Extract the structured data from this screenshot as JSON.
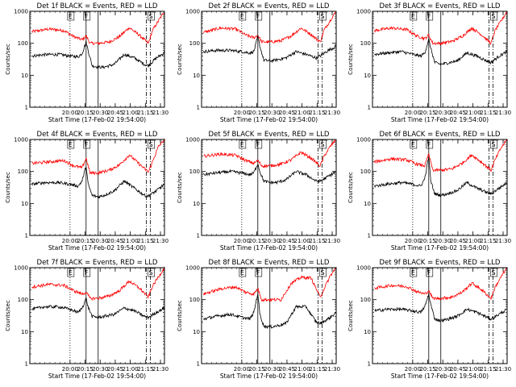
{
  "chart_data": {
    "type": "line",
    "layout": "3x3 grid of panels",
    "common": {
      "ylabel": "Counts/sec",
      "xlabel": "Start Time (17-Feb-02 19:54:00)",
      "yscale": "log",
      "ylim": [
        1,
        1000
      ],
      "ytick_labels": [
        "1",
        "10",
        "100",
        "1000"
      ],
      "xlim_minutes": [
        -34,
        100
      ],
      "xtick_labels": [
        "20:00",
        "20:15",
        "20:30",
        "20:45",
        "21:00",
        "21:15",
        "21:30"
      ],
      "xtick_minutes": [
        6,
        21,
        36,
        51,
        66,
        81,
        96
      ],
      "series_colors": {
        "events": "#000000",
        "lld": "#ff0000"
      },
      "markers": [
        {
          "label": "E",
          "minute": 6,
          "style": "dotted"
        },
        {
          "label": "F",
          "minute": 22,
          "style": "solid"
        },
        {
          "label": "",
          "minute": 34,
          "style": "solid"
        },
        {
          "label": "",
          "minute": 82,
          "style": "dash-dot"
        },
        {
          "label": "S",
          "minute": 86,
          "style": "dash-dot"
        }
      ]
    },
    "panels": [
      {
        "title": "Det 1f BLACK = Events, RED = LLD",
        "events": {
          "minutes": [
            -32,
            -20,
            -5,
            6,
            14,
            18,
            22,
            24,
            28,
            34,
            40,
            50,
            60,
            70,
            80,
            84,
            92,
            100
          ],
          "values": [
            40,
            44,
            45,
            40,
            38,
            48,
            110,
            60,
            20,
            18,
            18,
            22,
            45,
            35,
            22,
            20,
            35,
            50
          ]
        },
        "lld": {
          "minutes": [
            -32,
            -15,
            0,
            10,
            18,
            22,
            26,
            34,
            45,
            55,
            65,
            75,
            84,
            88,
            94,
            100
          ],
          "values": [
            230,
            280,
            250,
            160,
            130,
            170,
            100,
            100,
            110,
            160,
            310,
            180,
            100,
            250,
            500,
            1000
          ]
        }
      },
      {
        "title": "Det 2f BLACK = Events, RED = LLD",
        "events": {
          "minutes": [
            -32,
            -20,
            -5,
            6,
            14,
            18,
            22,
            24,
            28,
            34,
            40,
            50,
            60,
            70,
            80,
            84,
            92,
            100
          ],
          "values": [
            55,
            60,
            60,
            55,
            50,
            55,
            160,
            80,
            30,
            28,
            30,
            35,
            55,
            45,
            35,
            40,
            60,
            80
          ]
        },
        "lld": {
          "minutes": [
            -32,
            -15,
            0,
            10,
            18,
            22,
            26,
            34,
            45,
            55,
            65,
            75,
            84,
            88,
            94,
            100
          ],
          "values": [
            220,
            300,
            280,
            180,
            150,
            180,
            110,
            110,
            120,
            170,
            300,
            190,
            110,
            260,
            520,
            1000
          ]
        }
      },
      {
        "title": "Det 3f BLACK = Events, RED = LLD",
        "events": {
          "minutes": [
            -32,
            -20,
            -5,
            6,
            14,
            18,
            22,
            24,
            28,
            34,
            40,
            50,
            60,
            70,
            80,
            84,
            92,
            100
          ],
          "values": [
            45,
            50,
            55,
            45,
            40,
            50,
            130,
            70,
            25,
            22,
            24,
            28,
            50,
            40,
            28,
            25,
            40,
            55
          ]
        },
        "lld": {
          "minutes": [
            -32,
            -15,
            0,
            10,
            18,
            22,
            26,
            34,
            45,
            55,
            65,
            75,
            84,
            88,
            94,
            100
          ],
          "values": [
            250,
            300,
            270,
            170,
            140,
            180,
            100,
            100,
            115,
            165,
            300,
            180,
            100,
            250,
            500,
            1000
          ]
        }
      },
      {
        "title": "Det 4f BLACK = Events, RED = LLD",
        "events": {
          "minutes": [
            -32,
            -20,
            -5,
            6,
            14,
            18,
            22,
            24,
            28,
            34,
            40,
            50,
            60,
            70,
            80,
            84,
            92,
            100
          ],
          "values": [
            40,
            45,
            45,
            40,
            35,
            50,
            150,
            40,
            18,
            16,
            18,
            25,
            50,
            30,
            18,
            17,
            25,
            40
          ]
        },
        "lld": {
          "minutes": [
            -32,
            -15,
            0,
            10,
            18,
            22,
            26,
            34,
            45,
            55,
            65,
            75,
            84,
            88,
            94,
            100
          ],
          "values": [
            180,
            200,
            220,
            150,
            130,
            260,
            90,
            90,
            110,
            160,
            330,
            170,
            95,
            200,
            600,
            1000
          ]
        }
      },
      {
        "title": "Det 5f BLACK = Events, RED = LLD",
        "events": {
          "minutes": [
            -32,
            -20,
            -5,
            6,
            14,
            18,
            22,
            24,
            28,
            34,
            40,
            50,
            60,
            70,
            80,
            84,
            92,
            100
          ],
          "values": [
            80,
            90,
            100,
            90,
            80,
            90,
            180,
            100,
            50,
            45,
            45,
            55,
            100,
            80,
            50,
            50,
            70,
            100
          ]
        },
        "lld": {
          "minutes": [
            -32,
            -15,
            0,
            10,
            18,
            22,
            26,
            34,
            45,
            55,
            65,
            75,
            84,
            88,
            94,
            100
          ],
          "values": [
            300,
            350,
            320,
            220,
            180,
            220,
            150,
            150,
            170,
            230,
            400,
            260,
            150,
            300,
            600,
            1000
          ]
        }
      },
      {
        "title": "Det 6f BLACK = Events, RED = LLD",
        "events": {
          "minutes": [
            -32,
            -20,
            -5,
            6,
            14,
            18,
            22,
            24,
            28,
            34,
            40,
            50,
            60,
            70,
            80,
            84,
            92,
            100
          ],
          "values": [
            35,
            40,
            45,
            40,
            35,
            60,
            300,
            50,
            20,
            18,
            20,
            25,
            45,
            30,
            22,
            20,
            30,
            45
          ]
        },
        "lld": {
          "minutes": [
            -32,
            -15,
            0,
            10,
            18,
            22,
            26,
            34,
            45,
            55,
            65,
            75,
            84,
            88,
            94,
            100
          ],
          "values": [
            200,
            250,
            230,
            170,
            150,
            350,
            110,
            110,
            120,
            180,
            330,
            190,
            110,
            230,
            550,
            1000
          ]
        }
      },
      {
        "title": "Det 7f BLACK = Events, RED = LLD",
        "events": {
          "minutes": [
            -32,
            -20,
            -5,
            6,
            14,
            18,
            22,
            24,
            28,
            34,
            40,
            50,
            60,
            70,
            80,
            84,
            92,
            100
          ],
          "values": [
            50,
            60,
            60,
            50,
            40,
            55,
            110,
            60,
            30,
            28,
            30,
            35,
            55,
            45,
            30,
            28,
            40,
            55
          ]
        },
        "lld": {
          "minutes": [
            -32,
            -15,
            0,
            10,
            18,
            22,
            26,
            34,
            45,
            55,
            65,
            75,
            84,
            88,
            94,
            100
          ],
          "values": [
            250,
            300,
            280,
            190,
            150,
            170,
            110,
            110,
            130,
            190,
            380,
            230,
            120,
            260,
            520,
            1000
          ]
        }
      },
      {
        "title": "Det 8f BLACK = Events, RED = LLD",
        "events": {
          "minutes": [
            -32,
            -20,
            -5,
            6,
            14,
            18,
            22,
            24,
            28,
            34,
            40,
            50,
            60,
            70,
            80,
            84,
            92,
            100
          ],
          "values": [
            25,
            30,
            35,
            28,
            25,
            40,
            160,
            35,
            15,
            14,
            15,
            18,
            60,
            60,
            20,
            18,
            25,
            40
          ]
        },
        "lld": {
          "minutes": [
            -32,
            -15,
            0,
            10,
            18,
            22,
            26,
            34,
            45,
            55,
            65,
            75,
            84,
            88,
            94,
            100
          ],
          "values": [
            150,
            220,
            250,
            170,
            150,
            220,
            100,
            100,
            100,
            320,
            500,
            480,
            120,
            220,
            550,
            1000
          ]
        }
      },
      {
        "title": "Det 9f BLACK = Events, RED = LLD",
        "events": {
          "minutes": [
            -32,
            -20,
            -5,
            6,
            14,
            18,
            22,
            24,
            28,
            34,
            40,
            50,
            60,
            70,
            80,
            84,
            92,
            100
          ],
          "values": [
            45,
            50,
            50,
            45,
            40,
            60,
            150,
            70,
            25,
            22,
            24,
            30,
            50,
            40,
            28,
            25,
            35,
            50
          ]
        },
        "lld": {
          "minutes": [
            -32,
            -15,
            0,
            10,
            18,
            22,
            26,
            34,
            45,
            55,
            65,
            75,
            84,
            88,
            94,
            100
          ],
          "values": [
            230,
            280,
            260,
            180,
            150,
            190,
            110,
            110,
            120,
            170,
            330,
            200,
            110,
            240,
            520,
            1000
          ]
        }
      }
    ]
  }
}
